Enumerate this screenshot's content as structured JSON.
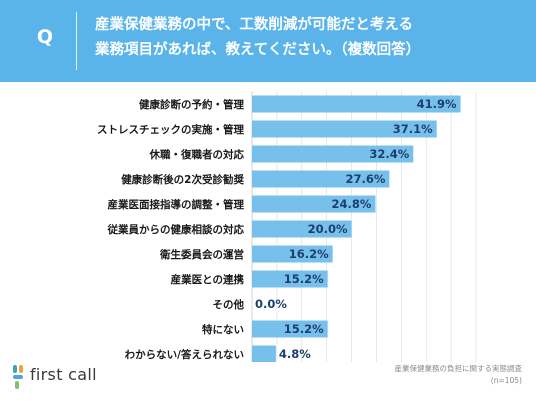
{
  "header": {
    "q_label": "Q",
    "question_line1": "産業保健業務の中で、工数削減が可能だと考える",
    "question_line2": "業務項目があれば、教えてください。（複数回答）"
  },
  "colors": {
    "header_bg": "#5ab4ea",
    "bar": "#78c0ec",
    "label_text": "#1a1a1a",
    "value_text": "#1c3f6e",
    "grid": "#d8d8d8"
  },
  "chart_data": {
    "type": "bar",
    "orientation": "horizontal",
    "categories": [
      "健康診断の予約・管理",
      "ストレスチェックの実施・管理",
      "休職・復職者の対応",
      "健康診断後の2次受診勧奨",
      "産業医面接指導の調整・管理",
      "従業員からの健康相談の対応",
      "衛生委員会の運営",
      "産業医との連携",
      "その他",
      "特にない",
      "わからない/答えられない"
    ],
    "values": [
      41.9,
      37.1,
      32.4,
      27.6,
      24.8,
      20.0,
      16.2,
      15.2,
      0.0,
      15.2,
      4.8
    ],
    "value_labels": [
      "41.9%",
      "37.1%",
      "32.4%",
      "27.6%",
      "24.8%",
      "20.0%",
      "16.2%",
      "15.2%",
      "0.0%",
      "15.2%",
      "4.8%"
    ],
    "xlim": [
      0,
      45
    ],
    "grid": true
  },
  "logo": {
    "text": "first call",
    "icon": "plus-cross-logo-icon"
  },
  "source": {
    "line1": "産業保健業務の負担に関する実態調査",
    "line2": "(n=105)"
  }
}
